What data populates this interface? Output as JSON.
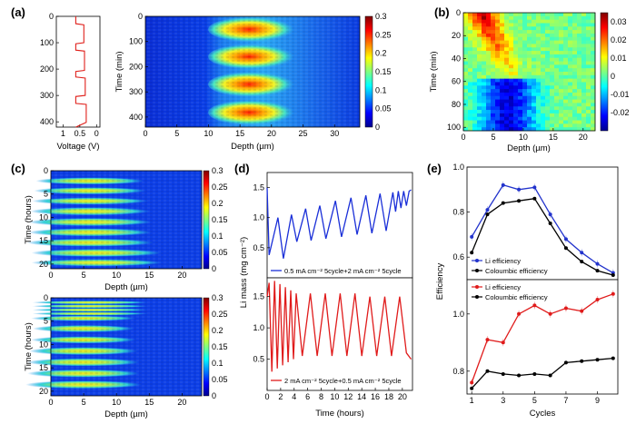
{
  "figure": {
    "panel_labels": [
      "(a)",
      "(b)",
      "(c)",
      "(d)",
      "(e)"
    ]
  },
  "chart_data": [
    {
      "panel": "a-left",
      "type": "line",
      "xlabel": "Voltage (V)",
      "ylabel": "",
      "xticks": [
        "1",
        "0.5",
        "0"
      ],
      "yticks": [
        "0",
        "100",
        "200",
        "300",
        "400"
      ],
      "xlim": [
        1.2,
        -0.1
      ],
      "ylim": [
        0,
        420
      ],
      "color": "#e0201b",
      "series": [
        {
          "x": [
            0.62,
            0.62,
            0.38,
            0.38,
            0.62,
            0.62,
            0.36,
            0.36,
            0.62,
            0.62,
            0.34,
            0.34,
            0.62,
            0.62,
            0.31,
            0.31,
            0.62
          ],
          "y": [
            0,
            28,
            32,
            100,
            104,
            128,
            132,
            205,
            209,
            230,
            234,
            300,
            304,
            330,
            334,
            402,
            420
          ]
        }
      ]
    },
    {
      "panel": "a-main",
      "type": "heatmap",
      "xlabel": "Depth (µm)",
      "ylabel": "Time (min)",
      "xticks": [
        "0",
        "5",
        "10",
        "15",
        "20",
        "25",
        "30"
      ],
      "yticks": [
        "0",
        "100",
        "200",
        "300",
        "400"
      ],
      "xlim": [
        0,
        34
      ],
      "ylim": [
        0,
        440
      ],
      "colorbar": {
        "min": 0,
        "max": 0.3,
        "ticks": [
          "0.3",
          "0.25",
          "0.2",
          "0.15",
          "0.1",
          "0.05",
          "0"
        ]
      },
      "hotspots": [
        {
          "depth": 16,
          "time": 52,
          "value": 0.29
        },
        {
          "depth": 16,
          "time": 160,
          "value": 0.28
        },
        {
          "depth": 16,
          "time": 270,
          "value": 0.28
        },
        {
          "depth": 16,
          "time": 382,
          "value": 0.27
        }
      ]
    },
    {
      "panel": "b",
      "type": "heatmap",
      "xlabel": "Depth (µm)",
      "ylabel": "Time (min)",
      "xticks": [
        "0",
        "5",
        "10",
        "15",
        "20"
      ],
      "yticks": [
        "0",
        "20",
        "40",
        "60",
        "80",
        "100"
      ],
      "xlim": [
        0,
        22
      ],
      "ylim": [
        0,
        103
      ],
      "colorbar": {
        "min": -0.03,
        "max": 0.035,
        "ticks": [
          "0.03",
          "0.02",
          "0.01",
          "0",
          "-0.01",
          "-0.02"
        ]
      }
    },
    {
      "panel": "c-top",
      "type": "heatmap",
      "xlabel": "Depth (µm)",
      "ylabel": "Time (hours)",
      "xticks": [
        "0",
        "5",
        "10",
        "15",
        "20"
      ],
      "yticks": [
        "0",
        "5",
        "10",
        "15",
        "20"
      ],
      "xlim": [
        0,
        23
      ],
      "ylim": [
        0,
        21
      ],
      "colorbar": {
        "min": 0,
        "max": 0.3,
        "ticks": [
          "0.3",
          "0.25",
          "0.2",
          "0.15",
          "0.1",
          "0.05",
          "0"
        ]
      }
    },
    {
      "panel": "c-bottom",
      "type": "heatmap",
      "xlabel": "Depth (µm)",
      "ylabel": "Time (hours)",
      "xticks": [
        "0",
        "5",
        "10",
        "15",
        "20"
      ],
      "yticks": [
        "0",
        "5",
        "10",
        "15",
        "20"
      ],
      "xlim": [
        0,
        23
      ],
      "ylim": [
        0,
        21
      ],
      "colorbar": {
        "min": 0,
        "max": 0.3,
        "ticks": [
          "0.3",
          "0.25",
          "0.2",
          "0.15",
          "0.1",
          "0.05",
          "0"
        ]
      }
    },
    {
      "panel": "d-top",
      "type": "line",
      "ylabel": "Li mass (mg cm⁻²)",
      "yticks": [
        "0.5",
        "1.0",
        "1.5"
      ],
      "ylim": [
        0,
        1.75
      ],
      "xlim": [
        0,
        21.5
      ],
      "color": "#1a2fd8",
      "legend": "0.5 mA cm⁻² 5cycle+2 mA cm⁻² 5cycle",
      "series": [
        {
          "x": [
            0,
            0.3,
            1.6,
            2.4,
            3.6,
            4.4,
            5.7,
            6.5,
            7.8,
            8.7,
            10.1,
            11.0,
            12.4,
            13.3,
            14.6,
            15.5,
            16.7,
            17.6,
            18.6,
            19.0,
            19.4,
            19.8,
            20.2,
            20.6,
            21.0,
            21.3
          ],
          "y": [
            1.5,
            0.38,
            1.0,
            0.32,
            1.05,
            0.6,
            1.15,
            0.62,
            1.2,
            0.65,
            1.28,
            0.68,
            1.33,
            0.72,
            1.37,
            0.74,
            1.4,
            0.78,
            1.42,
            1.1,
            1.44,
            1.16,
            1.44,
            1.2,
            1.44,
            1.46
          ]
        }
      ]
    },
    {
      "panel": "d-bottom",
      "type": "line",
      "xlabel": "Time (hours)",
      "yticks": [
        "0.5",
        "1.0",
        "1.5"
      ],
      "xticks": [
        "0",
        "2",
        "4",
        "6",
        "8",
        "10",
        "12",
        "14",
        "16",
        "18",
        "20"
      ],
      "ylim": [
        0,
        1.8
      ],
      "xlim": [
        0,
        21.5
      ],
      "color": "#e01b1b",
      "legend": "2 mA cm⁻² 5cycle+0.5 mA cm⁻² 5cycle",
      "series": [
        {
          "x": [
            0,
            0.3,
            0.7,
            1.1,
            1.5,
            1.9,
            2.3,
            2.7,
            3.1,
            3.5,
            3.9,
            4.3,
            5.2,
            6.4,
            7.4,
            8.6,
            9.6,
            10.8,
            11.8,
            13.0,
            14.0,
            15.2,
            16.2,
            17.4,
            18.4,
            19.6,
            20.6,
            21.3
          ],
          "y": [
            1.5,
            1.72,
            0.3,
            1.75,
            0.35,
            1.7,
            0.4,
            1.65,
            0.45,
            1.6,
            0.5,
            1.55,
            0.55,
            1.55,
            0.55,
            1.55,
            0.55,
            1.55,
            0.55,
            1.55,
            0.55,
            1.5,
            0.55,
            1.5,
            0.55,
            1.5,
            0.6,
            0.5
          ]
        }
      ]
    },
    {
      "panel": "e-top",
      "type": "line",
      "ylabel": "Efficiency",
      "yticks": [
        "0.6",
        "0.8",
        "1.0"
      ],
      "ylim": [
        0.5,
        1.0
      ],
      "xlim": [
        0.7,
        10.3
      ],
      "legend_position": "bottom-left",
      "series": [
        {
          "name": "Li efficiency",
          "color": "#2233cc",
          "x": [
            1,
            2,
            3,
            4,
            5,
            6,
            7,
            8,
            9,
            10
          ],
          "y": [
            0.69,
            0.81,
            0.92,
            0.9,
            0.91,
            0.79,
            0.68,
            0.62,
            0.57,
            0.53
          ]
        },
        {
          "name": "Coloumbic efficiency",
          "color": "#000000",
          "x": [
            1,
            2,
            3,
            4,
            5,
            6,
            7,
            8,
            9,
            10
          ],
          "y": [
            0.62,
            0.79,
            0.84,
            0.85,
            0.86,
            0.75,
            0.64,
            0.58,
            0.54,
            0.52
          ]
        }
      ]
    },
    {
      "panel": "e-bottom",
      "type": "line",
      "xlabel": "Cycles",
      "yticks": [
        "0.8",
        "1.0"
      ],
      "xticks": [
        "1",
        "3",
        "5",
        "7",
        "9"
      ],
      "ylim": [
        0.72,
        1.12
      ],
      "xlim": [
        0.7,
        10.3
      ],
      "legend_position": "top-left",
      "series": [
        {
          "name": "Li efficiency",
          "color": "#e01b1b",
          "x": [
            1,
            2,
            3,
            4,
            5,
            6,
            7,
            8,
            9,
            10
          ],
          "y": [
            0.76,
            0.91,
            0.9,
            1.0,
            1.03,
            1.0,
            1.02,
            1.01,
            1.05,
            1.07
          ]
        },
        {
          "name": "Coloumbic efficiency",
          "color": "#000000",
          "x": [
            1,
            2,
            3,
            4,
            5,
            6,
            7,
            8,
            9,
            10
          ],
          "y": [
            0.74,
            0.8,
            0.79,
            0.785,
            0.79,
            0.785,
            0.83,
            0.835,
            0.84,
            0.845
          ]
        }
      ]
    }
  ]
}
